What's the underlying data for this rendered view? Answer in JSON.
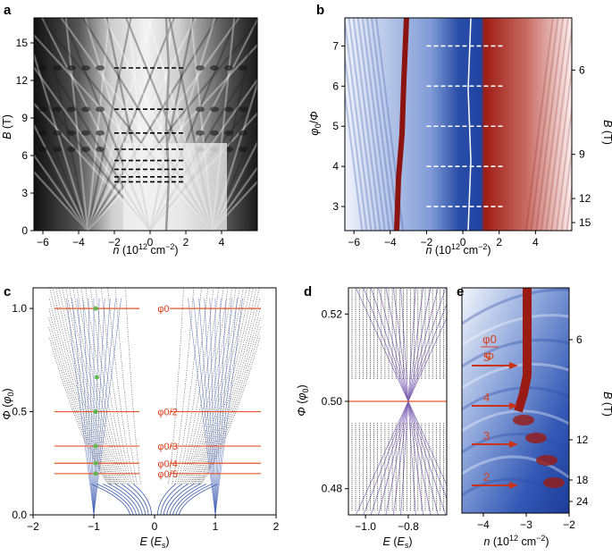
{
  "chart_data": [
    {
      "panel": "a",
      "type": "heatmap",
      "colormap": "grayscale",
      "xlabel": "n (10^12 cm^-2)",
      "ylabel": "B (T)",
      "xlim": [
        -6.5,
        6
      ],
      "ylim": [
        0,
        17
      ],
      "xticks": [
        -6,
        -4,
        -2,
        0,
        2,
        4
      ],
      "yticks": [
        0,
        3,
        6,
        9,
        12,
        15
      ],
      "dashed_levels_B": [
        13,
        9.7,
        7.8,
        6.5,
        5.6,
        4.9,
        4.3,
        3.9
      ],
      "dashed_x_range": [
        -2,
        2
      ]
    },
    {
      "panel": "b",
      "type": "heatmap",
      "colormap": "blue-white-red",
      "xlabel": "n (10^12 cm^-2)",
      "ylabel": "φ0/Φ",
      "right_ylabel": "B (T)",
      "xlim": [
        -6.5,
        6
      ],
      "ylim": [
        2.4,
        7.7
      ],
      "xticks": [
        -6,
        -4,
        -2,
        0,
        2,
        4
      ],
      "yticks": [
        3,
        4,
        5,
        6,
        7
      ],
      "right_yticks": [
        {
          "label": "6",
          "at": 6.4
        },
        {
          "label": "9",
          "at": 4.3
        },
        {
          "label": "12",
          "at": 3.2
        },
        {
          "label": "15",
          "at": 2.6
        }
      ],
      "dashed_levels": [
        3,
        4,
        5,
        6,
        7
      ],
      "dashed_x_range": [
        -2,
        2.3
      ]
    },
    {
      "panel": "c",
      "type": "scatter",
      "xlabel": "E (Es)",
      "ylabel": "Φ (φ0)",
      "xlim": [
        -2,
        2
      ],
      "ylim": [
        0,
        1.1
      ],
      "xticks": [
        -2,
        -1,
        0,
        1,
        2
      ],
      "yticks": [
        0.0,
        0.5,
        1.0
      ],
      "flux_lines": [
        {
          "label": "φ0",
          "value": 1.0
        },
        {
          "label": "φ0/2",
          "value": 0.5
        },
        {
          "label": "φ0/3",
          "value": 0.3333
        },
        {
          "label": "φ0/4",
          "value": 0.25
        },
        {
          "label": "φ0/5",
          "value": 0.2
        }
      ],
      "green_points": [
        {
          "x": -0.97,
          "y": 1.0
        },
        {
          "x": -0.97,
          "y": 0.5
        },
        {
          "x": -0.97,
          "y": 0.3333
        },
        {
          "x": -0.97,
          "y": 0.25
        },
        {
          "x": -0.97,
          "y": 0.2
        },
        {
          "x": -0.95,
          "y": 0.667
        }
      ]
    },
    {
      "panel": "d",
      "type": "scatter",
      "xlabel": "E (Es)",
      "ylabel": "Φ (φ0)",
      "xlim": [
        -1.08,
        -0.62
      ],
      "ylim": [
        0.474,
        0.526
      ],
      "xticks": [
        -1.0,
        -0.8
      ],
      "yticks": [
        0.48,
        0.5,
        0.52
      ],
      "orange_line": 0.5
    },
    {
      "panel": "e",
      "type": "heatmap",
      "colormap": "blue-white-red",
      "xlabel": "n (10^12 cm^-2)",
      "right_ylabel": "B (T)",
      "xlim": [
        -4.5,
        -2
      ],
      "xticks": [
        -4,
        -3,
        -2
      ],
      "right_yticks": [
        "6",
        "12",
        "18",
        "24"
      ],
      "inset_label_num": "φ0",
      "inset_label_den": "Φ",
      "arrow_labels": [
        "5",
        "4",
        "3",
        "2"
      ]
    }
  ],
  "panel_letters": [
    "a",
    "b",
    "c",
    "d",
    "e"
  ],
  "colors": {
    "orange": "#e8552a",
    "green": "#5fb84e",
    "blue": "#3f5fb0",
    "red": "#9a1a14",
    "dashblack": "#000000",
    "dashwhite": "#ffffff"
  }
}
